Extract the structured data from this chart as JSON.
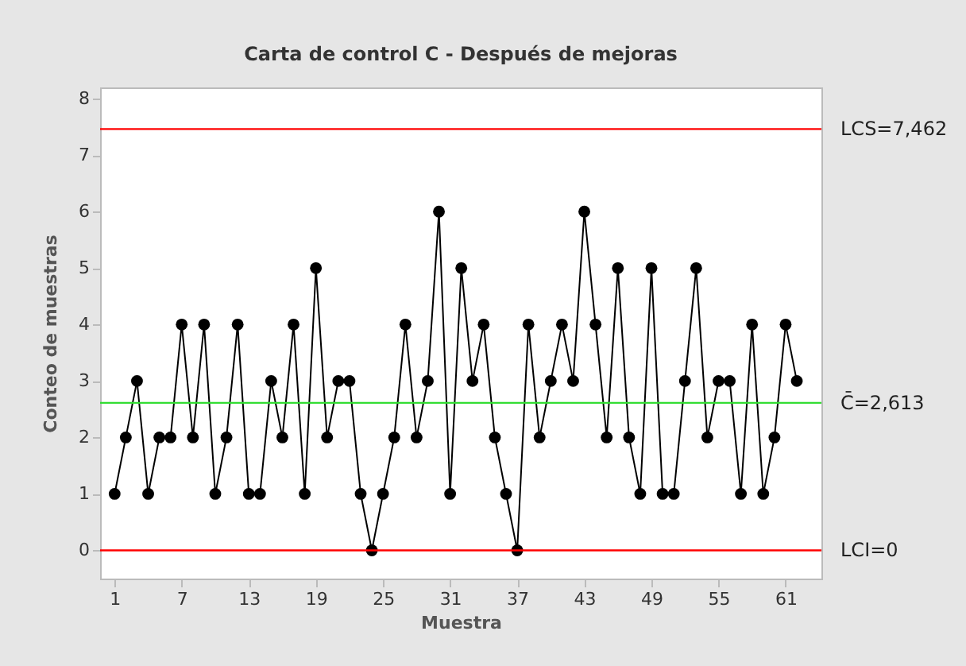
{
  "chart_data": {
    "type": "line",
    "title": "Carta de control C - Después de mejoras",
    "xlabel": "Muestra",
    "ylabel": "Conteo de muestras",
    "x": [
      1,
      2,
      3,
      4,
      5,
      6,
      7,
      8,
      9,
      10,
      11,
      12,
      13,
      14,
      15,
      16,
      17,
      18,
      19,
      20,
      21,
      22,
      23,
      24,
      25,
      26,
      27,
      28,
      29,
      30,
      31,
      32,
      33,
      34,
      35,
      36,
      37,
      38,
      39,
      40,
      41,
      42,
      43,
      44,
      45,
      46,
      47,
      48,
      49,
      50,
      51,
      52,
      53,
      54,
      55,
      56,
      57,
      58,
      59,
      60,
      61,
      62
    ],
    "series": [
      {
        "color": "#000000",
        "values": [
          1,
          2,
          3,
          1,
          2,
          2,
          4,
          2,
          4,
          1,
          2,
          4,
          1,
          1,
          3,
          2,
          4,
          1,
          5,
          2,
          3,
          3,
          1,
          0,
          1,
          2,
          4,
          2,
          3,
          6,
          1,
          5,
          3,
          4,
          2,
          1,
          0,
          4,
          2,
          3,
          4,
          3,
          6,
          4,
          2,
          5,
          2,
          1,
          5,
          1,
          1,
          3,
          5,
          2,
          3,
          3,
          1,
          4,
          1,
          2,
          4,
          3
        ]
      }
    ],
    "marker": "circle",
    "line_style": "solid",
    "xlim": [
      -0.3,
      64.2
    ],
    "ylim": [
      -0.5,
      8.2
    ],
    "xticks": [
      1,
      7,
      13,
      19,
      25,
      31,
      37,
      43,
      49,
      55,
      61
    ],
    "yticks": [
      0,
      1,
      2,
      3,
      4,
      5,
      6,
      7,
      8
    ],
    "grid": false,
    "ref_lines": [
      {
        "axis": "y",
        "value": 7.462,
        "label": "LCS=7,462",
        "color": "#ff0000"
      },
      {
        "axis": "y",
        "value": 2.613,
        "label": "C̄=2,613",
        "color": "#33dd33"
      },
      {
        "axis": "y",
        "value": 0,
        "label": "LCI=0",
        "color": "#ff0000"
      }
    ]
  }
}
